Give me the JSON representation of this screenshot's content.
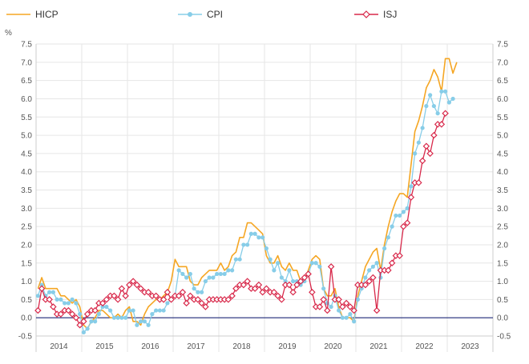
{
  "chart_data": {
    "type": "line",
    "ylabel": "%",
    "ylim": [
      -0.5,
      7.5
    ],
    "y_ticks": [
      "-0.5",
      "0.0",
      "0.5",
      "1.0",
      "1.5",
      "2.0",
      "2.5",
      "3.0",
      "3.5",
      "4.0",
      "4.5",
      "5.0",
      "5.5",
      "6.0",
      "6.5",
      "7.0",
      "7.5"
    ],
    "x_ticks": [
      "2014",
      "2015",
      "2016",
      "2017",
      "2018",
      "2019",
      "2020",
      "2021",
      "2022",
      "2023"
    ],
    "x_start": "2014-01",
    "legend_position": "top",
    "grid": true,
    "series": [
      {
        "name": "HICP",
        "color": "#f5a623",
        "marker": "none",
        "values": [
          0.8,
          1.1,
          0.8,
          0.8,
          0.8,
          0.8,
          0.6,
          0.6,
          0.5,
          0.4,
          0.5,
          0.3,
          -0.2,
          -0.3,
          -0.1,
          0.0,
          0.2,
          0.2,
          0.1,
          0.0,
          0.0,
          0.1,
          0.0,
          0.2,
          0.3,
          -0.1,
          -0.1,
          -0.2,
          0.1,
          0.3,
          0.4,
          0.5,
          0.5,
          0.6,
          0.7,
          1.0,
          1.6,
          1.4,
          1.4,
          1.4,
          1.0,
          0.9,
          0.9,
          1.1,
          1.2,
          1.3,
          1.3,
          1.3,
          1.5,
          1.3,
          1.4,
          1.7,
          1.8,
          2.2,
          2.2,
          2.6,
          2.6,
          2.5,
          2.4,
          2.3,
          1.7,
          1.5,
          1.5,
          1.7,
          1.4,
          1.3,
          1.5,
          1.3,
          1.3,
          1.0,
          1.0,
          1.3,
          1.6,
          1.7,
          1.6,
          0.8,
          0.6,
          0.6,
          0.8,
          0.3,
          0.0,
          0.0,
          0.0,
          -0.1,
          0.6,
          1.0,
          1.4,
          1.6,
          1.8,
          1.9,
          1.3,
          2.0,
          2.5,
          2.9,
          3.2,
          3.4,
          3.4,
          3.3,
          4.2,
          5.1,
          5.4,
          5.8,
          6.3,
          6.5,
          6.8,
          6.6,
          6.2,
          7.1,
          7.1,
          6.7,
          7.0
        ]
      },
      {
        "name": "CPI",
        "color": "#87cde8",
        "marker": "circle",
        "values": [
          0.6,
          0.9,
          0.6,
          0.7,
          0.7,
          0.5,
          0.5,
          0.4,
          0.4,
          0.5,
          0.4,
          0.1,
          -0.4,
          -0.3,
          -0.1,
          -0.1,
          0.1,
          0.3,
          0.3,
          0.2,
          0.0,
          0.0,
          0.0,
          0.0,
          0.2,
          0.2,
          -0.2,
          -0.1,
          -0.1,
          -0.2,
          0.1,
          0.2,
          0.2,
          0.2,
          0.4,
          0.5,
          0.6,
          1.3,
          1.2,
          1.1,
          1.2,
          0.8,
          0.7,
          0.7,
          1.0,
          1.1,
          1.1,
          1.2,
          1.2,
          1.2,
          1.3,
          1.3,
          1.6,
          1.6,
          2.0,
          2.0,
          2.3,
          2.3,
          2.2,
          2.2,
          1.9,
          1.6,
          1.3,
          1.5,
          1.1,
          1.0,
          1.3,
          1.0,
          1.0,
          0.9,
          1.0,
          1.2,
          1.5,
          1.5,
          1.4,
          0.8,
          0.4,
          0.3,
          0.6,
          0.2,
          0.0,
          0.0,
          0.1,
          -0.1,
          0.5,
          0.8,
          1.1,
          1.3,
          1.4,
          1.5,
          1.1,
          1.9,
          2.2,
          2.5,
          2.8,
          2.8,
          2.9,
          3.0,
          3.6,
          4.5,
          4.8,
          5.2,
          5.8,
          6.1,
          5.8,
          5.6,
          6.2,
          6.2,
          5.9,
          6.0
        ]
      },
      {
        "name": "ISJ",
        "color": "#d8284a",
        "marker": "diamond",
        "values": [
          0.2,
          0.8,
          0.5,
          0.5,
          0.3,
          0.1,
          0.1,
          0.2,
          0.2,
          0.1,
          0.0,
          -0.2,
          -0.1,
          0.1,
          0.2,
          0.2,
          0.4,
          0.4,
          0.5,
          0.6,
          0.6,
          0.5,
          0.8,
          0.6,
          0.9,
          1.0,
          0.9,
          0.8,
          0.7,
          0.7,
          0.6,
          0.6,
          0.5,
          0.5,
          0.7,
          0.5,
          0.6,
          0.6,
          0.7,
          0.4,
          0.6,
          0.5,
          0.5,
          0.4,
          0.3,
          0.5,
          0.5,
          0.5,
          0.5,
          0.5,
          0.5,
          0.6,
          0.8,
          0.9,
          0.9,
          1.0,
          0.8,
          0.8,
          0.9,
          0.7,
          0.8,
          0.7,
          0.7,
          0.6,
          0.5,
          0.9,
          0.9,
          0.7,
          0.9,
          1.0,
          1.1,
          1.2,
          0.7,
          0.3,
          0.3,
          0.5,
          0.2,
          1.4,
          0.5,
          0.5,
          0.3,
          0.4,
          0.3,
          0.2,
          0.9,
          0.9,
          0.9,
          1.0,
          1.1,
          0.2,
          1.3,
          1.3,
          1.3,
          1.5,
          1.7,
          1.7,
          2.5,
          2.6,
          3.3,
          3.7,
          3.7,
          4.3,
          4.7,
          4.5,
          5.0,
          5.3,
          5.3,
          5.6
        ]
      }
    ]
  }
}
